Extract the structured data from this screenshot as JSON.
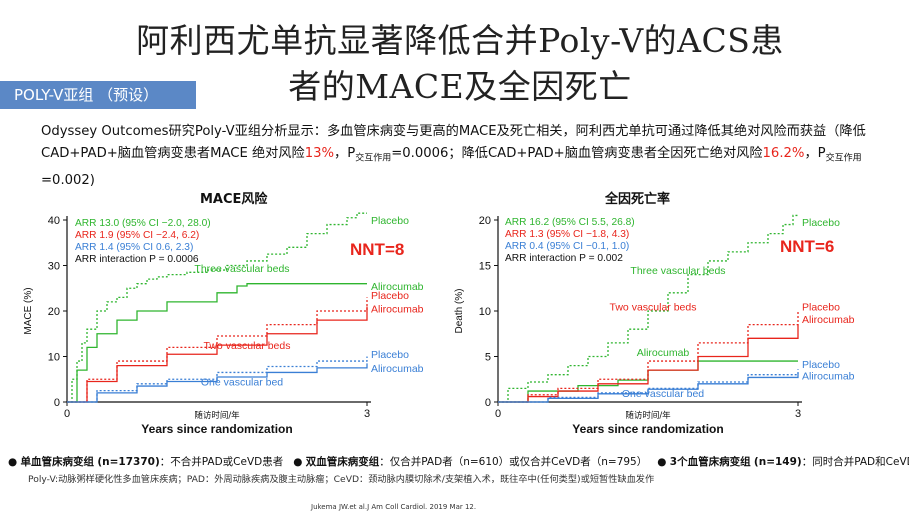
{
  "slide": {
    "title_line1": "阿利西尤单抗显著降低合并Poly-V的ACS患",
    "title_line2": "者的MACE及全因死亡",
    "badge": "POLY-V亚组 （预设）",
    "intro_a": "Odyssey Outcomes研究Poly-V亚组分析显示：多血管床病变与更高的MACE及死亡相关，阿利西尤单抗可通过降低其绝对风险而获益（降低CAD+PAD+脑血管病变患者MACE 绝对风险",
    "intro_pct1": "13%",
    "intro_b": "，",
    "intro_p": "P",
    "intro_sub": "交互作用",
    "intro_c": "=0.0006；降低CAD+PAD+脑血管病变患者全因死亡绝对风险",
    "intro_pct2": "16.2%",
    "intro_d": "，",
    "intro_e": "=0.002)",
    "footnote_a_bold": "单血管床病变组",
    "footnote_a_n": "(n=17370)",
    "footnote_a_desc": "：不合并PAD或CeVD患者",
    "footnote_b_bold": "双血管床病变组",
    "footnote_b_desc": "：仅合并PAD者（n=610）或仅合并CeVD者（n=795）",
    "footnote_c_bold": "3个血管床病变组",
    "footnote_c_n": "(n=149)",
    "footnote_c_desc": "：同时合并PAD和CeVD者。",
    "footnote2": "Poly-V:动脉粥样硬化性多血管床疾病；PAD：外周动脉疾病及腹主动脉瘤；CeVD：颈动脉内膜切除术/支架植入术，既往卒中(任何类型)或短暂性缺血发作",
    "citation": "Jukema JW.et al.J Am Coll Cardiol. 2019 Mar 12."
  },
  "colors": {
    "green": "#2fb52f",
    "red": "#e8251c",
    "blue": "#3a7fd5",
    "badge": "#5b88c6"
  },
  "chart_data": [
    {
      "type": "line",
      "title": "MACE风险",
      "ylabel": "MACE (%)",
      "xlabel": "Years since randomization",
      "xlabel_cn": "随访时间/年",
      "xlim": [
        0,
        3
      ],
      "ylim": [
        0,
        40
      ],
      "xticks": [
        0,
        3
      ],
      "yticks": [
        0,
        10,
        20,
        30,
        40
      ],
      "nnt": "NNT=8",
      "annotations": [
        {
          "text": "ARR 13.0 (95% CI −2.0, 28.0)",
          "color": "green"
        },
        {
          "text": "ARR 1.9 (95% CI −2.4, 6.2)",
          "color": "red"
        },
        {
          "text": "ARR 1.4 (95% CI 0.6, 2.3)",
          "color": "blue"
        },
        {
          "text": "ARR interaction P = 0.0006",
          "color": "black"
        }
      ],
      "groups": [
        {
          "name": "Three vascular beds",
          "color": "green"
        },
        {
          "name": "Two vascular beds",
          "color": "red"
        },
        {
          "name": "One vascular bed",
          "color": "blue"
        }
      ],
      "series": [
        {
          "name": "Placebo",
          "group": "Three vascular beds",
          "color": "green",
          "dashed": true,
          "x": [
            0,
            0.05,
            0.1,
            0.15,
            0.2,
            0.3,
            0.4,
            0.5,
            0.6,
            0.7,
            0.8,
            0.9,
            1.0,
            1.2,
            1.4,
            1.6,
            1.8,
            2.0,
            2.2,
            2.4,
            2.6,
            2.8,
            2.9,
            3.0
          ],
          "y": [
            0,
            5,
            9,
            13,
            16,
            20,
            22,
            23,
            25,
            26,
            27,
            27.5,
            28,
            28.5,
            29,
            30,
            31,
            32.5,
            34,
            37,
            39,
            40.5,
            41.5,
            41.5
          ]
        },
        {
          "name": "Alirocumab",
          "group": "Three vascular beds",
          "color": "green",
          "dashed": false,
          "x": [
            0,
            0.1,
            0.2,
            0.3,
            0.5,
            0.7,
            1.0,
            1.3,
            1.5,
            1.7,
            1.8,
            2.0,
            2.5,
            3.0
          ],
          "y": [
            0,
            7,
            12,
            15,
            18,
            20,
            22,
            22,
            24,
            25.5,
            26,
            26,
            26,
            26
          ]
        },
        {
          "name": "Placebo",
          "group": "Two vascular beds",
          "color": "red",
          "dashed": true,
          "x": [
            0,
            0.2,
            0.5,
            1.0,
            1.5,
            2.0,
            2.5,
            3.0
          ],
          "y": [
            0,
            5,
            9,
            12,
            14.5,
            17,
            20,
            23
          ]
        },
        {
          "name": "Alirocumab",
          "group": "Two vascular beds",
          "color": "red",
          "dashed": false,
          "x": [
            0,
            0.2,
            0.5,
            1.0,
            1.5,
            2.0,
            2.5,
            3.0
          ],
          "y": [
            0,
            4.5,
            8,
            10.5,
            12.5,
            15,
            18,
            21
          ]
        },
        {
          "name": "Placebo",
          "group": "One vascular bed",
          "color": "blue",
          "dashed": true,
          "x": [
            0,
            0.3,
            0.7,
            1.0,
            1.5,
            2.0,
            2.5,
            3.0
          ],
          "y": [
            0,
            2.5,
            4,
            5,
            6.5,
            7.8,
            9,
            10
          ]
        },
        {
          "name": "Alirocumab",
          "group": "One vascular bed",
          "color": "blue",
          "dashed": false,
          "x": [
            0,
            0.3,
            0.7,
            1.0,
            1.5,
            2.0,
            2.5,
            3.0
          ],
          "y": [
            0,
            2,
            3.5,
            4.5,
            5.5,
            6.5,
            7.5,
            8.5
          ]
        }
      ],
      "labels": [
        {
          "text": "Placebo",
          "color": "green",
          "x": 3.0,
          "y": 40
        },
        {
          "text": "Three vascular beds",
          "color": "green",
          "x": 1.75,
          "y": 29.5
        },
        {
          "text": "Alirocumab",
          "color": "green",
          "x": 3.0,
          "y": 25.5
        },
        {
          "text": "Placebo",
          "color": "red",
          "x": 3.0,
          "y": 23.5
        },
        {
          "text": "Alirocumab",
          "color": "red",
          "x": 3.0,
          "y": 20.5
        },
        {
          "text": "Two vascular beds",
          "color": "red",
          "x": 1.8,
          "y": 12.5
        },
        {
          "text": "Placebo",
          "color": "blue",
          "x": 3.0,
          "y": 10.5
        },
        {
          "text": "Alirocumab",
          "color": "blue",
          "x": 3.0,
          "y": 7.5
        },
        {
          "text": "One vascular bed",
          "color": "blue",
          "x": 1.75,
          "y": 4.5
        }
      ]
    },
    {
      "type": "line",
      "title": "全因死亡率",
      "ylabel": "Death (%)",
      "xlabel": "Years since randomization",
      "xlabel_cn": "随访时间/年",
      "xlim": [
        0,
        3
      ],
      "ylim": [
        0,
        20
      ],
      "xticks": [
        0,
        3
      ],
      "yticks": [
        0,
        5,
        10,
        15,
        20
      ],
      "nnt": "NNT=6",
      "annotations": [
        {
          "text": "ARR 16.2 (95% CI 5.5, 26.8)",
          "color": "green"
        },
        {
          "text": "ARR 1.3 (95% CI −1.8, 4.3)",
          "color": "red"
        },
        {
          "text": "ARR 0.4 (95% CI −0.1, 1.0)",
          "color": "blue"
        },
        {
          "text": "ARR interaction P = 0.002",
          "color": "black"
        }
      ],
      "groups": [
        {
          "name": "Three vascular beds",
          "color": "green"
        },
        {
          "name": "Two vascular beds",
          "color": "red"
        },
        {
          "name": "One vascular bed",
          "color": "blue"
        }
      ],
      "series": [
        {
          "name": "Placebo",
          "group": "Three vascular beds",
          "color": "green",
          "dashed": true,
          "x": [
            0,
            0.1,
            0.3,
            0.5,
            0.7,
            0.9,
            1.1,
            1.3,
            1.5,
            1.7,
            1.9,
            2.1,
            2.3,
            2.5,
            2.7,
            2.85,
            2.95,
            3.0
          ],
          "y": [
            0,
            1.5,
            2.2,
            3,
            4,
            5,
            6.5,
            8,
            10,
            12,
            14,
            15.5,
            16.5,
            17.5,
            18.5,
            19.5,
            20.5,
            20.5
          ]
        },
        {
          "name": "Alirocumab",
          "group": "Three vascular beds",
          "color": "green",
          "dashed": false,
          "x": [
            0,
            0.3,
            0.8,
            1.2,
            1.5,
            2.0,
            2.5,
            3.0
          ],
          "y": [
            0,
            1.2,
            1.8,
            2.4,
            3.5,
            4.5,
            4.5,
            4.5
          ]
        },
        {
          "name": "Placebo",
          "group": "Two vascular beds",
          "color": "red",
          "dashed": true,
          "x": [
            0,
            0.3,
            0.6,
            1.0,
            1.5,
            2.0,
            2.5,
            3.0
          ],
          "y": [
            0,
            0.8,
            1.5,
            2.5,
            4.5,
            6.5,
            8.5,
            10
          ]
        },
        {
          "name": "Alirocumab",
          "group": "Two vascular beds",
          "color": "red",
          "dashed": false,
          "x": [
            0,
            0.3,
            0.6,
            1.0,
            1.5,
            2.0,
            2.5,
            3.0
          ],
          "y": [
            0,
            0.6,
            1.2,
            2,
            3.5,
            5,
            7,
            8.5
          ]
        },
        {
          "name": "Placebo",
          "group": "One vascular bed",
          "color": "blue",
          "dashed": true,
          "x": [
            0,
            0.5,
            1.0,
            1.5,
            2.0,
            2.5,
            3.0
          ],
          "y": [
            0,
            0.5,
            1,
            1.5,
            2.2,
            3,
            3.6
          ]
        },
        {
          "name": "Alirocumab",
          "group": "One vascular bed",
          "color": "blue",
          "dashed": false,
          "x": [
            0,
            0.5,
            1.0,
            1.5,
            2.0,
            2.5,
            3.0
          ],
          "y": [
            0,
            0.4,
            0.9,
            1.4,
            2,
            2.7,
            3.2
          ]
        }
      ],
      "labels": [
        {
          "text": "Placebo",
          "color": "green",
          "x": 3.0,
          "y": 19.8
        },
        {
          "text": "Three vascular beds",
          "color": "green",
          "x": 1.8,
          "y": 14.5
        },
        {
          "text": "Two vascular beds",
          "color": "red",
          "x": 1.55,
          "y": 10.5
        },
        {
          "text": "Placebo",
          "color": "red",
          "x": 3.0,
          "y": 10.5
        },
        {
          "text": "Alirocumab",
          "color": "red",
          "x": 3.0,
          "y": 9.1
        },
        {
          "text": "Alirocumab",
          "color": "green",
          "x": 1.65,
          "y": 5.5
        },
        {
          "text": "Placebo",
          "color": "blue",
          "x": 3.0,
          "y": 4.2
        },
        {
          "text": "Alirocumab",
          "color": "blue",
          "x": 3.0,
          "y": 2.9
        },
        {
          "text": "One vascular bed",
          "color": "blue",
          "x": 1.65,
          "y": 1.0
        }
      ]
    }
  ]
}
